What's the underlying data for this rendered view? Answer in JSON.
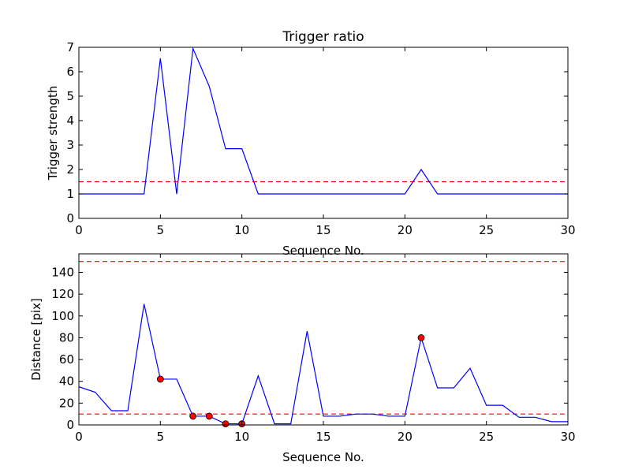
{
  "chart_data": [
    {
      "type": "line",
      "title": "Trigger ratio",
      "xlabel": "Sequence No.",
      "ylabel": "Trigger strength",
      "xlim": [
        0,
        30
      ],
      "ylim": [
        0,
        7
      ],
      "xticks": [
        0,
        5,
        10,
        15,
        20,
        25,
        30
      ],
      "yticks": [
        0,
        1,
        2,
        3,
        4,
        5,
        6,
        7
      ],
      "grid": false,
      "series": [
        {
          "color": "#0000ff",
          "x": [
            0,
            1,
            2,
            3,
            4,
            5,
            6,
            7,
            8,
            9,
            10,
            11,
            12,
            13,
            14,
            15,
            16,
            17,
            18,
            19,
            20,
            21,
            22,
            23,
            24,
            25,
            26,
            27,
            28,
            29,
            30
          ],
          "y": [
            1,
            1,
            1,
            1,
            1,
            6.55,
            1,
            6.95,
            5.4,
            2.85,
            2.85,
            1,
            1,
            1,
            1,
            1,
            1,
            1,
            1,
            1,
            1,
            2,
            1,
            1,
            1,
            1,
            1,
            1,
            1,
            1,
            1
          ]
        }
      ],
      "threshold_lines": [
        {
          "y": 1.5,
          "color": "#ff0000",
          "style": "dashed"
        }
      ]
    },
    {
      "type": "line",
      "title": "",
      "xlabel": "Sequence No.",
      "ylabel": "Distance [pix]",
      "xlim": [
        0,
        30
      ],
      "ylim": [
        0,
        157
      ],
      "xticks": [
        0,
        5,
        10,
        15,
        20,
        25,
        30
      ],
      "yticks": [
        0,
        20,
        40,
        60,
        80,
        100,
        120,
        140
      ],
      "grid": false,
      "series": [
        {
          "color": "#0000ff",
          "x": [
            0,
            1,
            2,
            3,
            4,
            5,
            6,
            7,
            8,
            9,
            10,
            11,
            12,
            13,
            14,
            15,
            16,
            17,
            18,
            19,
            20,
            21,
            22,
            23,
            24,
            25,
            26,
            27,
            28,
            29,
            30
          ],
          "y": [
            35,
            30,
            13,
            13,
            111,
            42,
            42,
            8,
            8,
            1,
            1,
            45,
            1,
            1,
            86,
            8,
            8,
            10,
            10,
            8,
            8,
            80,
            34,
            34,
            52,
            18,
            18,
            7,
            7,
            3,
            3
          ]
        }
      ],
      "markers": {
        "color": "#ff0000",
        "x": [
          5,
          7,
          8,
          9,
          10,
          21
        ],
        "y": [
          42,
          8,
          8,
          1,
          1,
          80
        ]
      },
      "threshold_lines": [
        {
          "y": 150,
          "color": "#ff0000",
          "style": "dashed"
        },
        {
          "y": 10,
          "color": "#ff0000",
          "style": "dashed"
        }
      ]
    }
  ]
}
